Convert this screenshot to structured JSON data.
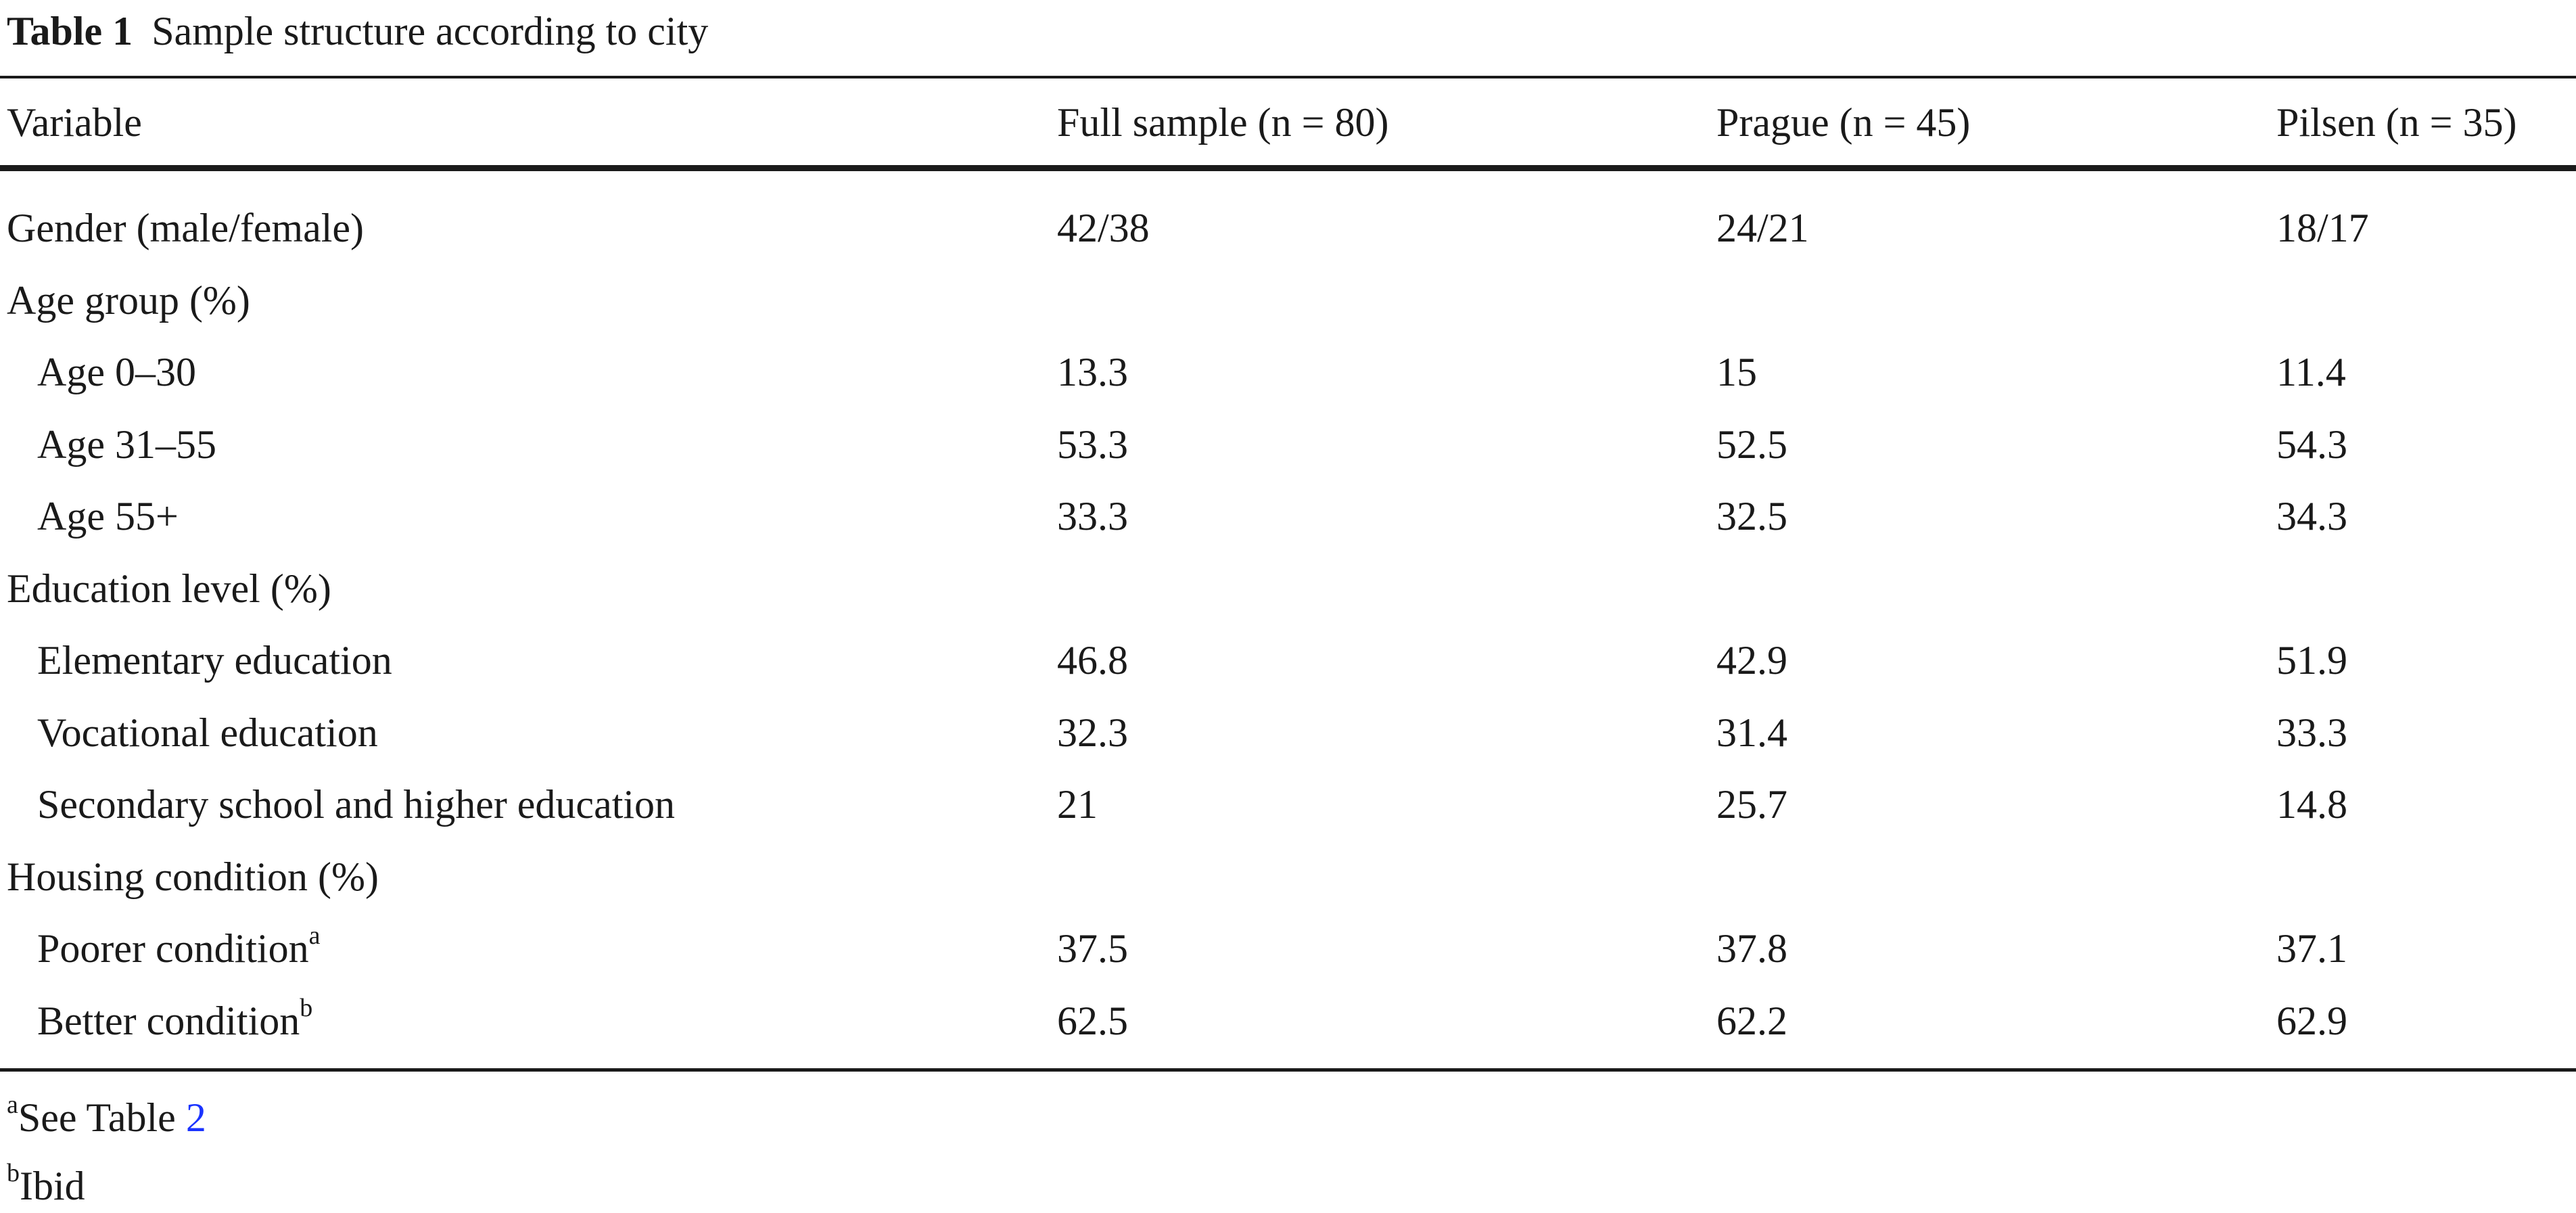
{
  "caption": {
    "number": "Table 1",
    "title": "Sample structure according to city"
  },
  "header": [
    "Variable",
    "Full sample (n = 80)",
    "Prague (n = 45)",
    "Pilsen (n = 35)"
  ],
  "rows": [
    {
      "label": "Gender (male/female)",
      "sup": "",
      "indent": false,
      "values": [
        "42/38",
        "24/21",
        "18/17"
      ]
    },
    {
      "label": "Age group (%)",
      "sup": "",
      "indent": false,
      "values": [
        "",
        "",
        ""
      ]
    },
    {
      "label": "Age 0–30",
      "sup": "",
      "indent": true,
      "values": [
        "13.3",
        "15",
        "11.4"
      ]
    },
    {
      "label": "Age 31–55",
      "sup": "",
      "indent": true,
      "values": [
        "53.3",
        "52.5",
        "54.3"
      ]
    },
    {
      "label": "Age 55+",
      "sup": "",
      "indent": true,
      "values": [
        "33.3",
        "32.5",
        "34.3"
      ]
    },
    {
      "label": "Education level (%)",
      "sup": "",
      "indent": false,
      "values": [
        "",
        "",
        ""
      ]
    },
    {
      "label": "Elementary education",
      "sup": "",
      "indent": true,
      "values": [
        "46.8",
        "42.9",
        "51.9"
      ]
    },
    {
      "label": "Vocational education",
      "sup": "",
      "indent": true,
      "values": [
        "32.3",
        "31.4",
        "33.3"
      ]
    },
    {
      "label": "Secondary school and higher education",
      "sup": "",
      "indent": true,
      "values": [
        "21",
        "25.7",
        "14.8"
      ]
    },
    {
      "label": "Housing condition (%)",
      "sup": "",
      "indent": false,
      "values": [
        "",
        "",
        ""
      ]
    },
    {
      "label": "Poorer condition",
      "sup": "a",
      "indent": true,
      "values": [
        "37.5",
        "37.8",
        "37.1"
      ]
    },
    {
      "label": "Better condition",
      "sup": "b",
      "indent": true,
      "values": [
        "62.5",
        "62.2",
        "62.9"
      ]
    }
  ],
  "footnotes": {
    "a": {
      "mark": "a",
      "text": "See Table ",
      "link": "2"
    },
    "b": {
      "mark": "b",
      "text": "Ibid"
    }
  }
}
